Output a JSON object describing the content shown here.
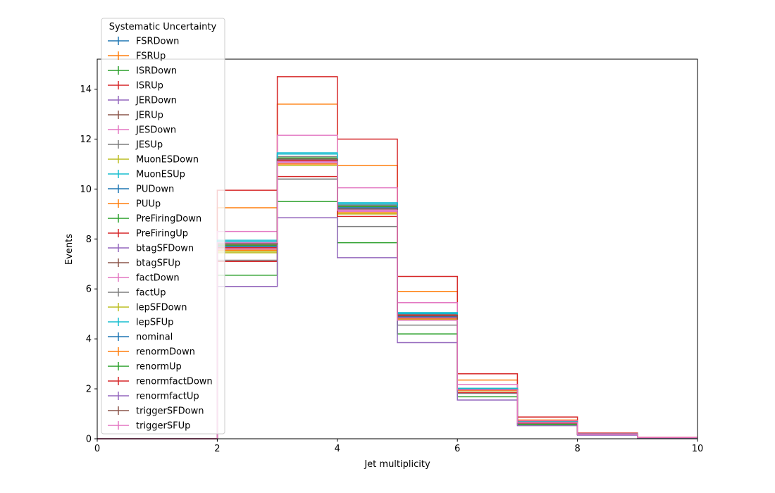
{
  "chart_data": {
    "type": "line",
    "style": "step-histogram",
    "xlabel": "Jet multiplicity",
    "ylabel": "Events",
    "xlim": [
      0,
      10
    ],
    "ylim": [
      0,
      15.2
    ],
    "x_ticks": [
      0,
      2,
      4,
      6,
      8,
      10
    ],
    "y_ticks": [
      0,
      2,
      4,
      6,
      8,
      10,
      12,
      14
    ],
    "bin_edges": [
      0,
      1,
      2,
      3,
      4,
      5,
      6,
      7,
      8,
      9,
      10
    ],
    "grid": false,
    "legend": {
      "title": "Systematic Uncertainty",
      "placement": "upper-left, outside top"
    },
    "series": [
      {
        "name": "FSRDown",
        "color": "#1f77b4",
        "values": [
          0,
          0,
          7.65,
          11.1,
          9.2,
          4.85,
          1.95,
          0.65,
          0.18,
          0.05
        ]
      },
      {
        "name": "FSRUp",
        "color": "#ff7f0e",
        "values": [
          0,
          0,
          9.25,
          13.4,
          10.95,
          5.9,
          2.35,
          0.75,
          0.21,
          0.05
        ]
      },
      {
        "name": "ISRDown",
        "color": "#2ca02c",
        "values": [
          0,
          0,
          7.7,
          11.15,
          9.25,
          4.9,
          1.97,
          0.66,
          0.18,
          0.05
        ]
      },
      {
        "name": "ISRUp",
        "color": "#d62728",
        "values": [
          0,
          0,
          9.95,
          14.5,
          12.0,
          6.5,
          2.6,
          0.87,
          0.23,
          0.06
        ]
      },
      {
        "name": "JERDown",
        "color": "#9467bd",
        "values": [
          0,
          0,
          7.7,
          11.2,
          9.25,
          4.9,
          1.98,
          0.66,
          0.18,
          0.05
        ]
      },
      {
        "name": "JERUp",
        "color": "#8c564b",
        "values": [
          0,
          0,
          7.75,
          11.2,
          9.3,
          4.92,
          1.98,
          0.66,
          0.18,
          0.05
        ]
      },
      {
        "name": "JESDown",
        "color": "#e377c2",
        "values": [
          0,
          0,
          8.3,
          12.15,
          10.05,
          5.45,
          2.17,
          0.72,
          0.2,
          0.05
        ]
      },
      {
        "name": "JESUp",
        "color": "#7f7f7f",
        "values": [
          0,
          0,
          7.15,
          10.4,
          8.5,
          4.55,
          1.82,
          0.6,
          0.17,
          0.05
        ]
      },
      {
        "name": "MuonESDown",
        "color": "#bcbd22",
        "values": [
          0,
          0,
          7.45,
          10.95,
          9.0,
          4.75,
          1.93,
          0.64,
          0.18,
          0.05
        ]
      },
      {
        "name": "MuonESUp",
        "color": "#17becf",
        "values": [
          0,
          0,
          7.95,
          11.45,
          9.45,
          5.05,
          2.02,
          0.68,
          0.19,
          0.05
        ]
      },
      {
        "name": "PUDown",
        "color": "#1f77b4",
        "values": [
          0,
          0,
          7.85,
          11.4,
          9.4,
          5.0,
          2.0,
          0.67,
          0.19,
          0.05
        ]
      },
      {
        "name": "PUUp",
        "color": "#ff7f0e",
        "values": [
          0,
          0,
          7.55,
          11.0,
          9.1,
          4.8,
          1.94,
          0.65,
          0.18,
          0.05
        ]
      },
      {
        "name": "PreFiringDown",
        "color": "#2ca02c",
        "values": [
          0,
          0,
          7.75,
          11.25,
          9.3,
          4.93,
          1.99,
          0.66,
          0.18,
          0.05
        ]
      },
      {
        "name": "PreFiringUp",
        "color": "#d62728",
        "values": [
          0,
          0,
          7.65,
          11.15,
          9.2,
          4.88,
          1.96,
          0.65,
          0.18,
          0.05
        ]
      },
      {
        "name": "btagSFDown",
        "color": "#9467bd",
        "values": [
          0,
          0,
          7.6,
          11.1,
          9.15,
          4.85,
          1.95,
          0.65,
          0.18,
          0.05
        ]
      },
      {
        "name": "btagSFUp",
        "color": "#8c564b",
        "values": [
          0,
          0,
          7.8,
          11.3,
          9.35,
          4.95,
          2.0,
          0.67,
          0.19,
          0.05
        ]
      },
      {
        "name": "factDown",
        "color": "#e377c2",
        "values": [
          0,
          0,
          7.6,
          11.05,
          9.1,
          4.8,
          1.93,
          0.64,
          0.18,
          0.05
        ]
      },
      {
        "name": "factUp",
        "color": "#7f7f7f",
        "values": [
          0,
          0,
          7.8,
          11.3,
          9.35,
          4.97,
          2.0,
          0.67,
          0.19,
          0.05
        ]
      },
      {
        "name": "lepSFDown",
        "color": "#bcbd22",
        "values": [
          0,
          0,
          7.5,
          10.95,
          9.05,
          4.78,
          1.92,
          0.64,
          0.18,
          0.05
        ]
      },
      {
        "name": "lepSFUp",
        "color": "#17becf",
        "values": [
          0,
          0,
          7.9,
          11.4,
          9.4,
          5.02,
          2.02,
          0.67,
          0.19,
          0.05
        ]
      },
      {
        "name": "nominal",
        "color": "#1f77b4",
        "values": [
          0,
          0,
          7.7,
          11.2,
          9.25,
          4.9,
          1.97,
          0.66,
          0.18,
          0.05
        ]
      },
      {
        "name": "renormDown",
        "color": "#ff7f0e",
        "values": [
          0,
          0,
          7.55,
          11.0,
          9.05,
          4.8,
          1.94,
          0.64,
          0.18,
          0.05
        ]
      },
      {
        "name": "renormUp",
        "color": "#2ca02c",
        "values": [
          0,
          0,
          6.55,
          9.5,
          7.85,
          4.2,
          1.68,
          0.57,
          0.16,
          0.04
        ]
      },
      {
        "name": "renormfactDown",
        "color": "#d62728",
        "values": [
          0,
          0,
          7.1,
          10.5,
          8.9,
          4.95,
          1.85,
          0.63,
          0.17,
          0.05
        ]
      },
      {
        "name": "renormfactUp",
        "color": "#9467bd",
        "values": [
          0,
          0,
          6.1,
          8.85,
          7.25,
          3.85,
          1.55,
          0.52,
          0.14,
          0.04
        ]
      },
      {
        "name": "triggerSFDown",
        "color": "#8c564b",
        "values": [
          0,
          0,
          7.8,
          11.2,
          9.2,
          4.92,
          1.97,
          0.66,
          0.18,
          0.05
        ]
      },
      {
        "name": "triggerSFUp",
        "color": "#e377c2",
        "values": [
          0,
          0,
          7.85,
          11.1,
          9.15,
          4.75,
          1.96,
          0.65,
          0.18,
          0.05
        ]
      }
    ]
  }
}
